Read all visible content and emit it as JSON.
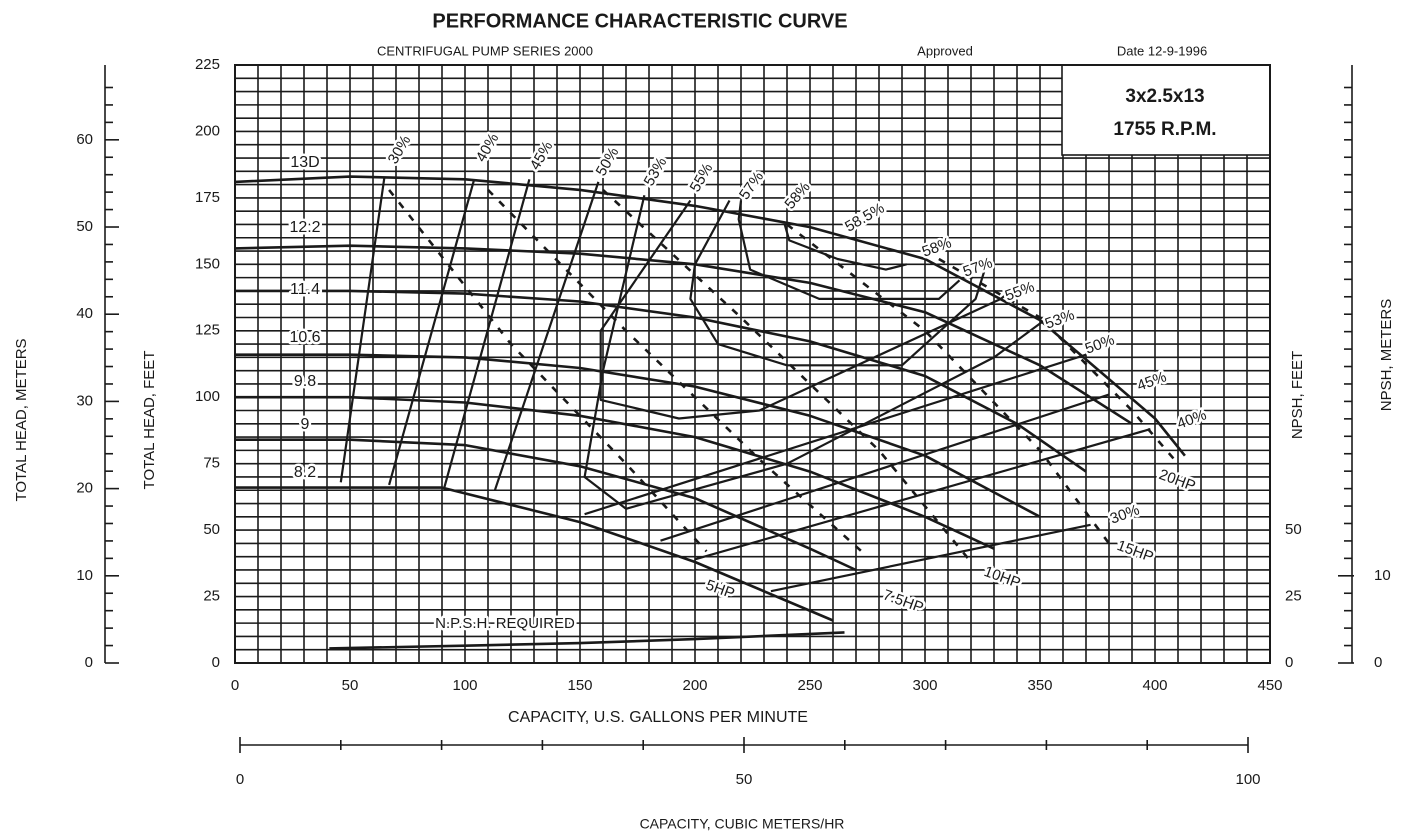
{
  "chart_data": {
    "type": "line",
    "title": "PERFORMANCE CHARACTERISTIC CURVE",
    "subtitle": "CENTRIFUGAL PUMP SERIES 2000",
    "approval": "Approved",
    "date": "Date 12-9-1996",
    "model": "3x2.5x13",
    "speed": "1755 R.P.M.",
    "xlabel": "CAPACITY, U.S. GALLONS PER MINUTE",
    "ylabel": "TOTAL HEAD, FEET",
    "color": "#1a1a1a",
    "xlim": [
      0,
      450
    ],
    "xticks": [
      0,
      50,
      100,
      150,
      200,
      250,
      300,
      350,
      400,
      450
    ],
    "ylim": [
      0,
      225
    ],
    "yticks": [
      0,
      25,
      50,
      75,
      100,
      125,
      150,
      175,
      200,
      225
    ],
    "xgrid": [
      0,
      10,
      20,
      30,
      40,
      50,
      60,
      70,
      80,
      90,
      100,
      110,
      120,
      130,
      140,
      150,
      160,
      170,
      180,
      190,
      200,
      210,
      220,
      230,
      240,
      250,
      260,
      270,
      280,
      290,
      300,
      310,
      320,
      330,
      340,
      350,
      360,
      370,
      380,
      390,
      400,
      410,
      420,
      430,
      440,
      450
    ],
    "ygrid": [
      0,
      5,
      10,
      15,
      20,
      25,
      30,
      35,
      40,
      45,
      50,
      55,
      60,
      65,
      70,
      75,
      80,
      85,
      90,
      95,
      100,
      105,
      110,
      115,
      120,
      125,
      130,
      135,
      140,
      145,
      150,
      155,
      160,
      165,
      170,
      175,
      180,
      185,
      190,
      195,
      200,
      205,
      210,
      215,
      220,
      225
    ],
    "head_meters_axis": {
      "label": "TOTAL HEAD, METERS",
      "lim": [
        0,
        68.58
      ],
      "ticks": [
        0,
        10,
        20,
        30,
        40,
        50,
        60
      ],
      "minor_ticks": [
        2,
        4,
        6,
        8,
        12,
        14,
        16,
        18,
        22,
        24,
        26,
        28,
        32,
        34,
        36,
        38,
        42,
        44,
        46,
        48,
        52,
        54,
        56,
        58,
        62,
        64,
        66
      ]
    },
    "npsh_feet_axis": {
      "label": "NPSH, FEET",
      "lim": [
        0,
        225
      ],
      "ticks": [
        0,
        25,
        50
      ]
    },
    "npsh_meters_axis": {
      "label": "NPSH, METERS",
      "lim": [
        0,
        68.58
      ],
      "ticks": [
        0,
        10
      ],
      "minor_ticks": [
        2,
        4,
        6,
        8,
        12,
        14,
        16,
        18,
        20,
        22,
        24,
        26,
        28,
        30,
        32,
        34,
        36,
        38,
        40,
        42,
        44,
        46,
        48,
        50,
        52,
        54,
        56,
        58,
        60,
        62,
        64,
        66
      ]
    },
    "cmh_axis": {
      "label": "CAPACITY, CUBIC METERS/HR",
      "lim": [
        0,
        100
      ],
      "ticks": [
        0,
        50,
        100
      ],
      "minor_ticks": [
        10,
        20,
        30,
        40,
        60,
        70,
        80,
        90
      ]
    },
    "impellers": [
      {
        "name": "13D",
        "x": [
          0,
          50,
          100,
          150,
          200,
          250,
          300,
          350,
          400,
          413
        ],
        "values": [
          181,
          183,
          182,
          178,
          172,
          164,
          152,
          129,
          92,
          78
        ]
      },
      {
        "name": "12.2",
        "x": [
          0,
          50,
          100,
          150,
          200,
          250,
          300,
          350,
          390
        ],
        "values": [
          156,
          157,
          156,
          154,
          150,
          143,
          132,
          112,
          90
        ]
      },
      {
        "name": "11.4",
        "x": [
          0,
          50,
          100,
          150,
          200,
          250,
          300,
          340,
          370
        ],
        "values": [
          140,
          140,
          139,
          136,
          130,
          121,
          108,
          90,
          72
        ]
      },
      {
        "name": "10.6",
        "x": [
          0,
          50,
          100,
          150,
          200,
          250,
          300,
          350
        ],
        "values": [
          116,
          116,
          115,
          111,
          104,
          93,
          78,
          55
        ]
      },
      {
        "name": "9.8",
        "x": [
          0,
          50,
          100,
          150,
          200,
          250,
          300,
          330
        ],
        "values": [
          100,
          100,
          98,
          93,
          85,
          72,
          55,
          43
        ]
      },
      {
        "name": "9",
        "x": [
          0,
          50,
          100,
          150,
          200,
          250,
          270
        ],
        "values": [
          84,
          84,
          82,
          74,
          62,
          43,
          35
        ]
      },
      {
        "name": "8.2",
        "x": [
          0,
          50,
          90,
          150,
          200,
          260
        ],
        "values": [
          66,
          66,
          66,
          53,
          38,
          16
        ]
      }
    ],
    "efficiency": [
      {
        "name": "30%",
        "x": [
          65,
          46,
          null,
          233,
          372
        ],
        "values": [
          183,
          68,
          null,
          27,
          52
        ]
      },
      {
        "name": "40%",
        "x": [
          104,
          67,
          null,
          200,
          398
        ],
        "values": [
          182,
          67,
          null,
          39,
          88
        ]
      },
      {
        "name": "45%",
        "x": [
          128,
          91,
          null,
          185,
          380
        ],
        "values": [
          182,
          66,
          null,
          46,
          101
        ]
      },
      {
        "name": "50%",
        "x": [
          158,
          113,
          null,
          152,
          370
        ],
        "values": [
          181,
          65,
          null,
          56,
          116
        ]
      },
      {
        "name": "53%",
        "x": [
          178,
          160,
          152,
          170,
          240,
          330,
          352
        ],
        "values": [
          176,
          110,
          70,
          58,
          75,
          115,
          129
        ]
      },
      {
        "name": "55%",
        "x": [
          198,
          159,
          159,
          193,
          228,
          333,
          337
        ],
        "values": [
          174,
          125,
          99,
          92,
          95,
          137,
          140
        ]
      },
      {
        "name": "57%",
        "x": [
          215,
          200,
          198,
          210,
          240,
          290,
          322,
          326
        ],
        "values": [
          174,
          150,
          137,
          120,
          112,
          112,
          137,
          148
        ]
      },
      {
        "name": "58%",
        "x": [
          220,
          219,
          224,
          254,
          306,
          315
        ],
        "values": [
          174,
          167,
          148,
          137,
          137,
          144
        ]
      },
      {
        "name": "58.5%",
        "x": [
          239,
          241,
          262,
          283,
          292
        ],
        "values": [
          165,
          159,
          152,
          148,
          150
        ]
      }
    ],
    "power": [
      {
        "name": "5HP",
        "x": [
          67,
          120,
          170,
          205
        ],
        "values": [
          178,
          120,
          75,
          42
        ]
      },
      {
        "name": "7.5HP",
        "x": [
          110,
          170,
          230,
          275
        ],
        "values": [
          178,
          125,
          75,
          40
        ]
      },
      {
        "name": "10HP",
        "x": [
          160,
          220,
          280,
          320
        ],
        "values": [
          178,
          130,
          80,
          38
        ]
      },
      {
        "name": "15HP",
        "x": [
          240,
          300,
          350,
          380
        ],
        "values": [
          165,
          125,
          80,
          45
        ]
      },
      {
        "name": "20HP",
        "x": [
          300,
          350,
          390,
          410
        ],
        "values": [
          155,
          130,
          95,
          75
        ]
      }
    ],
    "npsh": [
      {
        "name": "N.P.S.H. REQUIRED",
        "x": [
          41,
          100,
          150,
          200,
          265
        ],
        "values": [
          5.5,
          6.5,
          7.5,
          9,
          11.5
        ]
      }
    ]
  }
}
